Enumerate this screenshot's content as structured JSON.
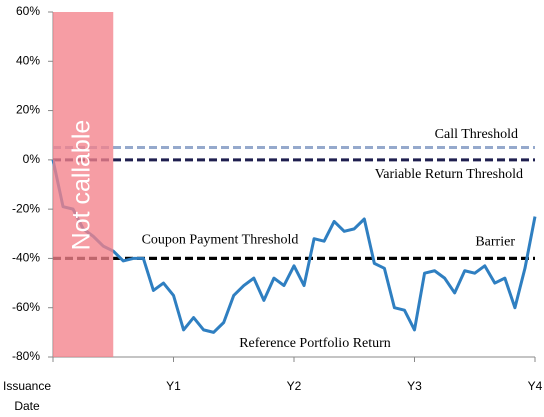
{
  "chart_data": {
    "type": "line",
    "xlim": [
      0,
      48
    ],
    "xticks": [
      {
        "value": 0,
        "label": "Issuance Date"
      },
      {
        "value": 12,
        "label": "Y1"
      },
      {
        "value": 24,
        "label": "Y2"
      },
      {
        "value": 36,
        "label": "Y3"
      },
      {
        "value": 48,
        "label": "Y4"
      }
    ],
    "ylim": [
      -80,
      60
    ],
    "yticks": [
      {
        "value": -80,
        "label": "-80%"
      },
      {
        "value": -60,
        "label": "-60%"
      },
      {
        "value": -40,
        "label": "-40%"
      },
      {
        "value": -20,
        "label": "-20%"
      },
      {
        "value": 0,
        "label": "0%"
      },
      {
        "value": 20,
        "label": "20%"
      },
      {
        "value": 40,
        "label": "40%"
      },
      {
        "value": 60,
        "label": "60%"
      }
    ],
    "shaded_region": {
      "label": "Not callable",
      "x": [
        0,
        6
      ],
      "color": "#f4828a"
    },
    "thresholds": [
      {
        "label": "Call Threshold",
        "value": 5,
        "color": "#95a9cc"
      },
      {
        "label": "Variable Return Threshold",
        "value": 0,
        "color": "#1f1f4f"
      },
      {
        "label": "Coupon Payment Threshold",
        "value": -40,
        "color": "#000000"
      },
      {
        "label": "Barrier",
        "value": -40,
        "color": "#000000"
      }
    ],
    "x": [
      0,
      1,
      2,
      3,
      4,
      5,
      6,
      7,
      8,
      9,
      10,
      11,
      12,
      13,
      14,
      15,
      16,
      17,
      18,
      19,
      20,
      21,
      22,
      23,
      24,
      25,
      26,
      27,
      28,
      29,
      30,
      31,
      32,
      33,
      34,
      35,
      36,
      37,
      38,
      39,
      40,
      41,
      42,
      43,
      44,
      45,
      46,
      47,
      48
    ],
    "series": [
      {
        "name": "Reference Portfolio Return",
        "color": "#2f7fc1",
        "values": [
          0,
          -19,
          -20,
          -28,
          -31,
          -35,
          -37,
          -41,
          -40,
          -40,
          -53,
          -50,
          -55,
          -69,
          -64,
          -69,
          -70,
          -66,
          -55,
          -51,
          -48,
          -57,
          -48,
          -51,
          -43,
          -51,
          -32,
          -33,
          -25,
          -29,
          -28,
          -24,
          -42,
          -44,
          -60,
          -61,
          -69,
          -46,
          -45,
          -48,
          -54,
          -45,
          -46,
          -43,
          -50,
          -48,
          -60,
          -44,
          -23
        ]
      }
    ]
  }
}
